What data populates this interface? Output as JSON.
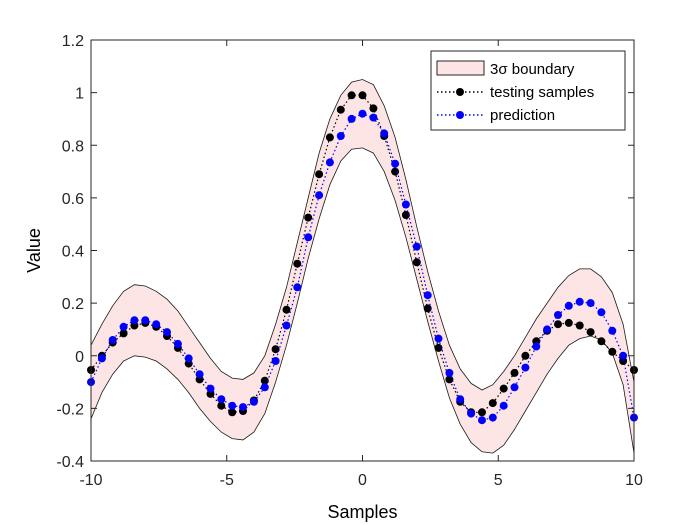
{
  "chart_data": {
    "type": "line",
    "title": "",
    "xlabel": "Samples",
    "ylabel": "Value",
    "xlim": [
      -10,
      10
    ],
    "ylim": [
      -0.4,
      1.2
    ],
    "xticks": [
      -10,
      -5,
      0,
      5,
      10
    ],
    "yticks": [
      -0.4,
      -0.2,
      0,
      0.2,
      0.4,
      0.6,
      0.8,
      1,
      1.2
    ],
    "xtick_labels": [
      "-10",
      "-5",
      "0",
      "5",
      "10"
    ],
    "ytick_labels": [
      "-0.4",
      "-0.2",
      "0",
      "0.2",
      "0.4",
      "0.6",
      "0.8",
      "1",
      "1.2"
    ],
    "grid": false,
    "legend_position": "top-right",
    "legend": [
      {
        "label": "3σ boundary",
        "kind": "band"
      },
      {
        "label": "testing samples",
        "kind": "line-marker"
      },
      {
        "label": "prediction",
        "kind": "line-marker"
      }
    ],
    "colors": {
      "band_fill": "#fde5e5",
      "band_edge": "#1a1a1a",
      "testing": "#000000",
      "prediction": "#0000ff"
    },
    "x": [
      -10,
      -9.6,
      -9.2,
      -8.8,
      -8.4,
      -8,
      -7.6,
      -7.2,
      -6.8,
      -6.4,
      -6,
      -5.6,
      -5.2,
      -4.8,
      -4.4,
      -4,
      -3.6,
      -3.2,
      -2.8,
      -2.4,
      -2,
      -1.6,
      -1.2,
      -0.8,
      -0.4,
      0,
      0.4,
      0.8,
      1.2,
      1.6,
      2,
      2.4,
      2.8,
      3.2,
      3.6,
      4,
      4.4,
      4.8,
      5.2,
      5.6,
      6,
      6.4,
      6.8,
      7.2,
      7.6,
      8,
      8.4,
      8.8,
      9.2,
      9.6,
      10
    ],
    "series": [
      {
        "name": "testing samples",
        "values": [
          -0.054,
          0.0,
          0.05,
          0.085,
          0.115,
          0.125,
          0.11,
          0.075,
          0.03,
          -0.03,
          -0.09,
          -0.145,
          -0.19,
          -0.215,
          -0.21,
          -0.17,
          -0.095,
          0.025,
          0.175,
          0.35,
          0.525,
          0.69,
          0.83,
          0.935,
          0.99,
          0.99,
          0.94,
          0.835,
          0.7,
          0.535,
          0.355,
          0.18,
          0.03,
          -0.09,
          -0.175,
          -0.215,
          -0.215,
          -0.18,
          -0.125,
          -0.065,
          0.0,
          0.055,
          0.095,
          0.12,
          0.125,
          0.115,
          0.09,
          0.055,
          0.015,
          -0.02,
          -0.054
        ]
      },
      {
        "name": "prediction",
        "values": [
          -0.1,
          -0.01,
          0.06,
          0.11,
          0.135,
          0.135,
          0.12,
          0.09,
          0.045,
          -0.01,
          -0.07,
          -0.125,
          -0.165,
          -0.19,
          -0.195,
          -0.175,
          -0.12,
          -0.02,
          0.115,
          0.26,
          0.45,
          0.61,
          0.735,
          0.835,
          0.9,
          0.92,
          0.905,
          0.845,
          0.73,
          0.575,
          0.415,
          0.23,
          0.065,
          -0.065,
          -0.165,
          -0.22,
          -0.245,
          -0.235,
          -0.19,
          -0.12,
          -0.045,
          0.035,
          0.1,
          0.155,
          0.19,
          0.205,
          0.2,
          0.165,
          0.095,
          0.0,
          -0.235
        ]
      }
    ],
    "band": {
      "name": "3σ boundary",
      "upper": [
        0.04,
        0.12,
        0.19,
        0.245,
        0.27,
        0.265,
        0.245,
        0.215,
        0.17,
        0.11,
        0.05,
        -0.01,
        -0.06,
        -0.085,
        -0.09,
        -0.065,
        0.0,
        0.12,
        0.26,
        0.43,
        0.6,
        0.77,
        0.9,
        0.99,
        1.04,
        1.05,
        1.03,
        0.95,
        0.83,
        0.67,
        0.49,
        0.32,
        0.17,
        0.04,
        -0.05,
        -0.105,
        -0.13,
        -0.11,
        -0.06,
        0.0,
        0.07,
        0.14,
        0.2,
        0.26,
        0.305,
        0.33,
        0.33,
        0.3,
        0.24,
        0.12,
        -0.1
      ],
      "lower": [
        -0.24,
        -0.14,
        -0.07,
        -0.02,
        0.0,
        -0.005,
        -0.02,
        -0.05,
        -0.09,
        -0.14,
        -0.2,
        -0.25,
        -0.29,
        -0.315,
        -0.32,
        -0.29,
        -0.22,
        -0.1,
        0.04,
        0.2,
        0.37,
        0.52,
        0.65,
        0.74,
        0.785,
        0.79,
        0.77,
        0.7,
        0.59,
        0.45,
        0.29,
        0.13,
        -0.02,
        -0.16,
        -0.26,
        -0.33,
        -0.365,
        -0.37,
        -0.34,
        -0.28,
        -0.21,
        -0.14,
        -0.07,
        -0.01,
        0.04,
        0.065,
        0.075,
        0.06,
        0.01,
        -0.11,
        -0.37
      ]
    }
  }
}
